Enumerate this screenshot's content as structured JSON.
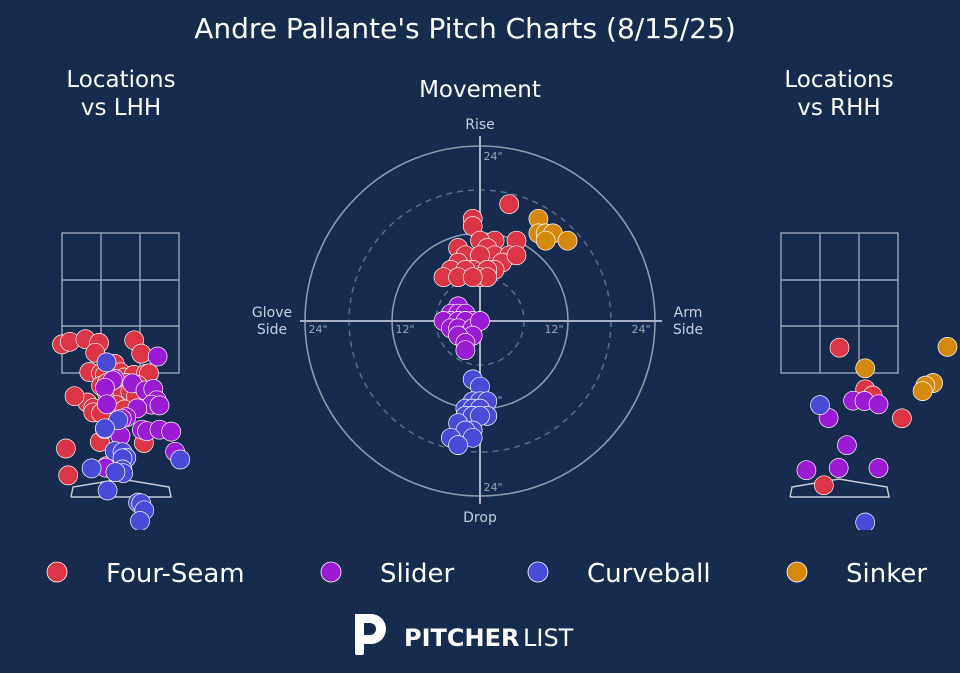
{
  "chart_data": [
    {
      "type": "scatter",
      "title": "Locations vs LHH",
      "x_axis": "plate horizontal location (catcher view, inches from plate center)",
      "y_axis": "plate height (inches above ground)",
      "series": [
        {
          "name": "Four-Seam",
          "points": [
            [
              -15.0,
              55.5
            ],
            [
              -13.0,
              56.2
            ],
            [
              -9.0,
              56.9
            ],
            [
              -5.5,
              55.9
            ],
            [
              -6.5,
              53.2
            ],
            [
              3.5,
              56.6
            ],
            [
              -8.5,
              39.7
            ],
            [
              5.3,
              53.0
            ],
            [
              -1.5,
              50.2
            ],
            [
              -8.0,
              48.0
            ],
            [
              -5.0,
              47.7
            ],
            [
              -2.0,
              46.8
            ],
            [
              -4.0,
              47.3
            ],
            [
              0.0,
              47.9
            ],
            [
              1.0,
              46.5
            ],
            [
              3.4,
              47.2
            ],
            [
              6.5,
              47.5
            ],
            [
              7.3,
              47.6
            ],
            [
              -5.0,
              44.2
            ],
            [
              -3.5,
              45.0
            ],
            [
              -1.0,
              44.4
            ],
            [
              1.5,
              45.0
            ],
            [
              4.1,
              44.1
            ],
            [
              4.5,
              44.4
            ],
            [
              -11.8,
              41.4
            ],
            [
              -3.5,
              42.3
            ],
            [
              0.5,
              42.0
            ],
            [
              2.5,
              42.6
            ],
            [
              4.0,
              41.3
            ],
            [
              -7.0,
              38.2
            ],
            [
              -4.0,
              37.9
            ],
            [
              -2.5,
              37.3
            ],
            [
              -1.0,
              39.0
            ],
            [
              1.0,
              37.8
            ],
            [
              -7.0,
              37.0
            ],
            [
              -5.0,
              36.8
            ],
            [
              -14.0,
              27.2
            ],
            [
              -5.3,
              29.0
            ],
            [
              6.0,
              28.7
            ],
            [
              -13.4,
              19.9
            ],
            [
              -0.8,
              24.2
            ],
            [
              -3.6,
              22.4
            ]
          ]
        },
        {
          "name": "Slider",
          "points": [
            [
              9.5,
              52.2
            ],
            [
              -1.5,
              46.1
            ],
            [
              -2.0,
              45.7
            ],
            [
              3.0,
              44.9
            ],
            [
              -4.0,
              43.7
            ],
            [
              6.4,
              43.0
            ],
            [
              8.4,
              43.4
            ],
            [
              9.3,
              40.3
            ],
            [
              -3.5,
              39.2
            ],
            [
              8.0,
              39.1
            ],
            [
              10.0,
              38.9
            ],
            [
              4.3,
              38.1
            ],
            [
              1.5,
              35.7
            ],
            [
              0.3,
              35.3
            ],
            [
              -4.0,
              32.5
            ],
            [
              5.5,
              32.3
            ],
            [
              6.8,
              31.9
            ],
            [
              10.0,
              32.3
            ],
            [
              13.0,
              31.8
            ],
            [
              0.0,
              30.6
            ],
            [
              14.0,
              26.3
            ],
            [
              -3.8,
              22.0
            ]
          ]
        },
        {
          "name": "Curveball",
          "points": [
            [
              -3.6,
              50.6
            ],
            [
              -0.6,
              34.9
            ],
            [
              -4.0,
              32.7
            ],
            [
              -1.5,
              26.5
            ],
            [
              0.5,
              26.2
            ],
            [
              1.5,
              24.7
            ],
            [
              -7.4,
              21.8
            ],
            [
              0.5,
              24.5
            ],
            [
              0.5,
              21.5
            ],
            [
              0.7,
              20.5
            ],
            [
              -1.3,
              20.8
            ],
            [
              15.3,
              24.2
            ],
            [
              -3.3,
              15.8
            ],
            [
              4.5,
              12.5
            ],
            [
              5.3,
              12.3
            ],
            [
              6.1,
              10.4
            ],
            [
              5.0,
              7.5
            ]
          ]
        },
        {
          "name": "Sinker",
          "points": []
        }
      ]
    },
    {
      "type": "scatter",
      "title": "Movement",
      "x_axis": "horizontal break (inches, glove side negative, arm side positive)",
      "y_axis": "induced vertical break (inches)",
      "rings_inches": [
        6,
        12,
        18,
        24
      ],
      "series": [
        {
          "name": "Four-Seam",
          "points": [
            [
              4,
              16
            ],
            [
              -1,
              14
            ],
            [
              -1,
              13
            ],
            [
              2,
              11
            ],
            [
              5,
              11
            ],
            [
              0,
              11
            ],
            [
              1,
              10
            ],
            [
              -3,
              10
            ],
            [
              2,
              9
            ],
            [
              4,
              9
            ],
            [
              -2,
              9
            ],
            [
              0,
              9
            ],
            [
              3,
              8
            ],
            [
              1,
              7
            ],
            [
              5,
              9
            ],
            [
              -3,
              8
            ],
            [
              2,
              7
            ],
            [
              -1,
              7
            ],
            [
              -4,
              7
            ],
            [
              -1,
              7
            ],
            [
              1,
              7
            ],
            [
              -3,
              6
            ],
            [
              -2,
              7
            ],
            [
              0,
              6
            ],
            [
              -5,
              6
            ],
            [
              -3,
              6
            ],
            [
              1,
              6
            ],
            [
              -1,
              6
            ]
          ]
        },
        {
          "name": "Slider",
          "points": [
            [
              -3,
              2
            ],
            [
              -4,
              1
            ],
            [
              -3,
              1
            ],
            [
              -2,
              1
            ],
            [
              -4,
              0
            ],
            [
              -2,
              0
            ],
            [
              -1,
              0
            ],
            [
              -5,
              0
            ],
            [
              -3,
              0
            ],
            [
              -4,
              -1
            ],
            [
              -2,
              0
            ],
            [
              -3,
              -1
            ],
            [
              -2,
              -2
            ],
            [
              -1,
              -1
            ],
            [
              0,
              0
            ],
            [
              -1,
              -2
            ],
            [
              -3,
              -2
            ],
            [
              -2,
              -3
            ],
            [
              -2,
              -4
            ]
          ]
        },
        {
          "name": "Curveball",
          "points": [
            [
              -1,
              -8
            ],
            [
              0,
              -9
            ],
            [
              -1,
              -11
            ],
            [
              0,
              -11
            ],
            [
              1,
              -11
            ],
            [
              -2,
              -12
            ],
            [
              -1,
              -12
            ],
            [
              0,
              -12
            ],
            [
              1,
              -13
            ],
            [
              -2,
              -13
            ],
            [
              -1,
              -13
            ],
            [
              0,
              -13
            ],
            [
              -3,
              -14
            ],
            [
              -1,
              -15
            ],
            [
              -2,
              -15
            ],
            [
              -1,
              -16
            ],
            [
              -4,
              -16
            ],
            [
              -3,
              -17
            ]
          ]
        },
        {
          "name": "Sinker",
          "points": [
            [
              8,
              14
            ],
            [
              8,
              12
            ],
            [
              9,
              12
            ],
            [
              10,
              12
            ],
            [
              12,
              11
            ],
            [
              9,
              11
            ]
          ]
        }
      ]
    },
    {
      "type": "scatter",
      "title": "Locations vs RHH",
      "x_axis": "plate horizontal location (catcher view, inches from plate center)",
      "y_axis": "plate height (inches above ground)",
      "series": [
        {
          "name": "Four-Seam",
          "points": [
            [
              0.0,
              54.6
            ],
            [
              6.6,
              43.3
            ],
            [
              8.5,
              41.6
            ],
            [
              16.0,
              35.4
            ],
            [
              -4.0,
              17.2
            ]
          ]
        },
        {
          "name": "Slider",
          "points": [
            [
              3.5,
              40.2
            ],
            [
              6.4,
              40.1
            ],
            [
              10.0,
              39.2
            ],
            [
              -2.8,
              35.5
            ],
            [
              1.9,
              28.1
            ],
            [
              -8.5,
              21.3
            ],
            [
              -0.2,
              21.9
            ],
            [
              10.0,
              21.9
            ]
          ]
        },
        {
          "name": "Curveball",
          "points": [
            [
              -5.0,
              39.0
            ],
            [
              6.6,
              7.1
            ]
          ]
        },
        {
          "name": "Sinker",
          "points": [
            [
              6.6,
              49.0
            ],
            [
              27.7,
              54.8
            ],
            [
              24.0,
              45.0
            ],
            [
              22.0,
              44.3
            ],
            [
              21.3,
              42.8
            ]
          ]
        }
      ]
    }
  ],
  "header": {
    "title": "Andre Pallante's Pitch Charts (8/15/25)"
  },
  "panels": {
    "lhh_title_line1": "Locations",
    "lhh_title_line2": "vs LHH",
    "movement_title": "Movement",
    "rhh_title_line1": "Locations",
    "rhh_title_line2": "vs RHH"
  },
  "movement_labels": {
    "top": "Rise",
    "bottom": "Drop",
    "left_line1": "Glove",
    "left_line2": "Side",
    "right_line1": "Arm",
    "right_line2": "Side",
    "ring_24": "24\"",
    "ring_12": "12\""
  },
  "legend": [
    {
      "label": "Four-Seam",
      "color": "#dc3545"
    },
    {
      "label": "Slider",
      "color": "#9b1ad4"
    },
    {
      "label": "Curveball",
      "color": "#4a4ad8"
    },
    {
      "label": "Sinker",
      "color": "#d4890c"
    }
  ],
  "colors": {
    "background": "#162b4d",
    "zone_lines": "#9aa5b8",
    "ring_lines": "#8d99ad",
    "Four-Seam": "#dc3545",
    "Slider": "#9b1ad4",
    "Curveball": "#4a4ad8",
    "Sinker": "#d4890c"
  },
  "footer": {
    "logo_bold": "PITCHER",
    "logo_light": "LIST",
    "logo_icon": "pitcherlist-logo-icon"
  }
}
